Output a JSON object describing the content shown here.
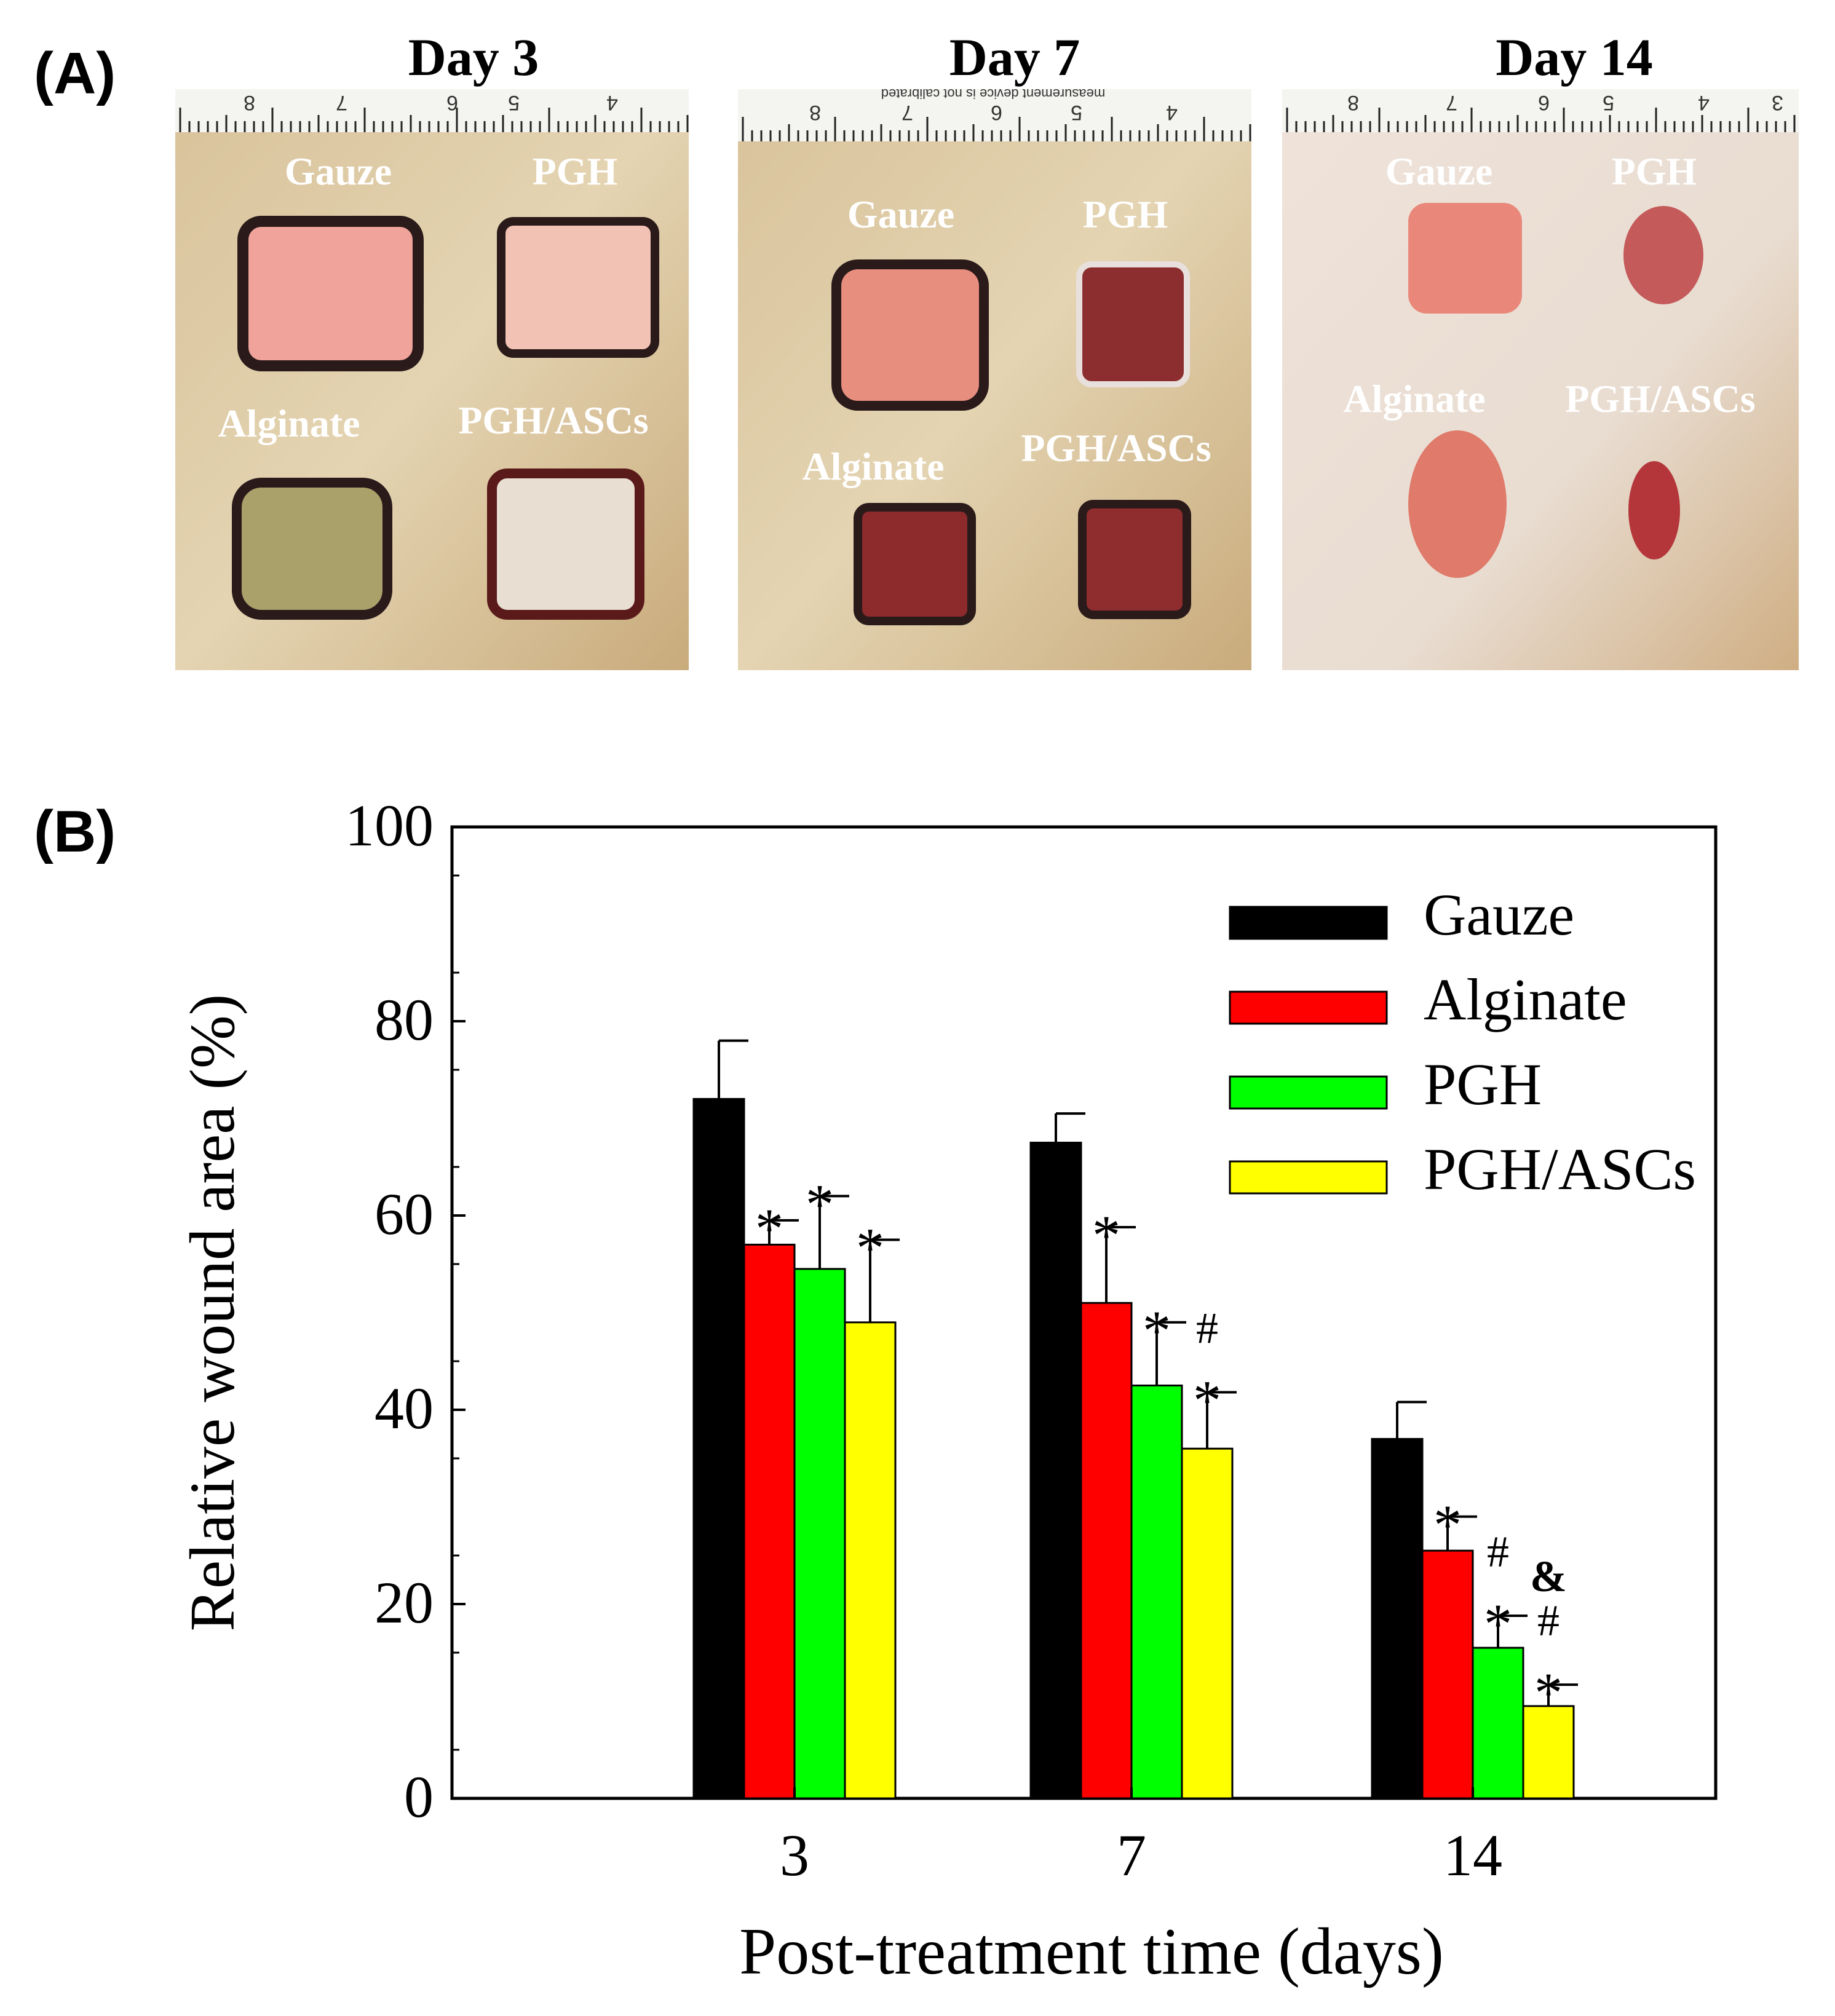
{
  "panel_a": {
    "label": "(A)",
    "rulers": [
      [
        "8",
        "7",
        "6",
        "5",
        "4"
      ],
      [
        "8",
        "7",
        "6",
        "5",
        "4"
      ],
      [
        "8",
        "7",
        "6",
        "5",
        "4",
        "3"
      ]
    ],
    "ruler_caption": "measurement device is not calibrated",
    "photos": [
      {
        "title": "Day 3",
        "gauze": "Gauze",
        "pgh": "PGH",
        "alginate": "Alginate",
        "pgh_ascs": "PGH/ASCs"
      },
      {
        "title": "Day 7",
        "gauze": "Gauze",
        "pgh": "PGH",
        "alginate": "Alginate",
        "pgh_ascs": "PGH/ASCs"
      },
      {
        "title": "Day 14",
        "gauze": "Gauze",
        "pgh": "PGH",
        "alginate": "Alginate",
        "pgh_ascs": "PGH/ASCs"
      }
    ]
  },
  "panel_b": {
    "label": "(B)"
  },
  "chart_data": {
    "type": "bar",
    "xlabel": "Post-treatment time (days)",
    "ylabel": "Relative wound area (%)",
    "ylim": [
      0,
      100
    ],
    "yticks": [
      0,
      20,
      40,
      60,
      80,
      100
    ],
    "categories": [
      "3",
      "7",
      "14"
    ],
    "legend_position": "top-right",
    "series": [
      {
        "name": "Gauze",
        "color": "#000000",
        "values": [
          72,
          67.5,
          37
        ],
        "errors": [
          6,
          3,
          3.8
        ],
        "annotations": [
          [],
          [],
          []
        ]
      },
      {
        "name": "Alginate",
        "color": "#ff0000",
        "values": [
          57,
          51,
          25.5
        ],
        "errors": [
          2.5,
          7.8,
          3.5
        ],
        "annotations": [
          [
            "*"
          ],
          [
            "*"
          ],
          [
            "*"
          ]
        ]
      },
      {
        "name": "PGH",
        "color": "#00ff00",
        "values": [
          54.5,
          42.5,
          15.5
        ],
        "errors": [
          7.5,
          6.5,
          3.3
        ],
        "annotations": [
          [
            "*"
          ],
          [
            "*"
          ],
          [
            "*",
            "#"
          ]
        ]
      },
      {
        "name": "PGH/ASCs",
        "color": "#ffff00",
        "values": [
          49,
          36,
          9.5
        ],
        "errors": [
          8.5,
          5.8,
          2.2
        ],
        "annotations": [
          [
            "*"
          ],
          [
            "*",
            "#"
          ],
          [
            "*",
            "#",
            "&"
          ]
        ]
      }
    ]
  }
}
